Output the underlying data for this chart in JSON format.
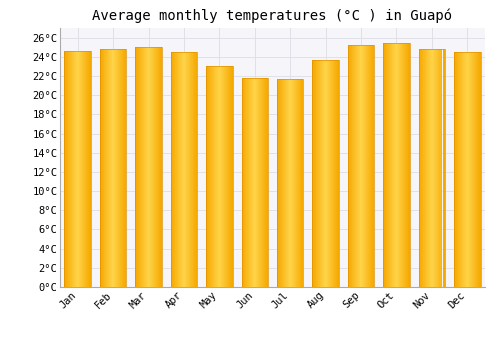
{
  "title": "Average monthly temperatures (°C ) in Guapó",
  "months": [
    "Jan",
    "Feb",
    "Mar",
    "Apr",
    "May",
    "Jun",
    "Jul",
    "Aug",
    "Sep",
    "Oct",
    "Nov",
    "Dec"
  ],
  "values": [
    24.6,
    24.8,
    25.0,
    24.5,
    23.0,
    21.8,
    21.7,
    23.7,
    25.2,
    25.4,
    24.8,
    24.5
  ],
  "bar_color_dark": "#F5A800",
  "bar_color_light": "#FFD44A",
  "bar_color_edge": "#E09000",
  "ylim": [
    0,
    27
  ],
  "yticks": [
    0,
    2,
    4,
    6,
    8,
    10,
    12,
    14,
    16,
    18,
    20,
    22,
    24,
    26
  ],
  "ytick_labels": [
    "0°C",
    "2°C",
    "4°C",
    "6°C",
    "8°C",
    "10°C",
    "12°C",
    "14°C",
    "16°C",
    "18°C",
    "20°C",
    "22°C",
    "24°C",
    "26°C"
  ],
  "background_color": "#FFFFFF",
  "plot_bg_color": "#F5F5FA",
  "grid_color": "#E0E0E8",
  "title_fontsize": 10,
  "tick_fontsize": 7.5,
  "bar_width": 0.75
}
